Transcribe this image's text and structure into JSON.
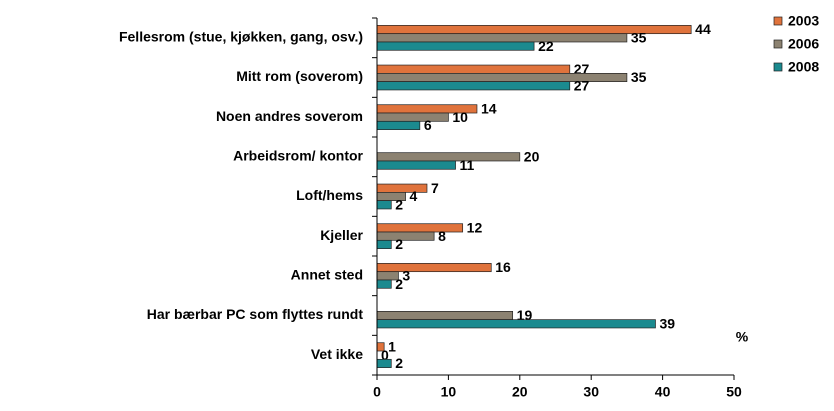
{
  "chart_data": {
    "type": "hbar",
    "categories": [
      "Fellesrom (stue, kjøkken, gang, osv.)",
      "Mitt rom (soverom)",
      "Noen andres soverom",
      "Arbeidsrom/ kontor",
      "Loft/hems",
      "Kjeller",
      "Annet sted",
      "Har bærbar PC som flyttes rundt",
      "Vet ikke"
    ],
    "series": [
      {
        "name": "2003",
        "color": "#e0733c",
        "values": [
          44,
          27,
          14,
          null,
          7,
          12,
          16,
          null,
          1
        ]
      },
      {
        "name": "2006",
        "color": "#8c8271",
        "values": [
          35,
          35,
          10,
          20,
          4,
          8,
          3,
          19,
          0
        ]
      },
      {
        "name": "2008",
        "color": "#1b8a8f",
        "values": [
          22,
          27,
          6,
          11,
          2,
          2,
          2,
          39,
          2
        ]
      }
    ],
    "x_label": "%",
    "xlim": [
      0,
      50
    ],
    "xticks": [
      0,
      10,
      20,
      30,
      40,
      50
    ],
    "legend": "top-right"
  }
}
